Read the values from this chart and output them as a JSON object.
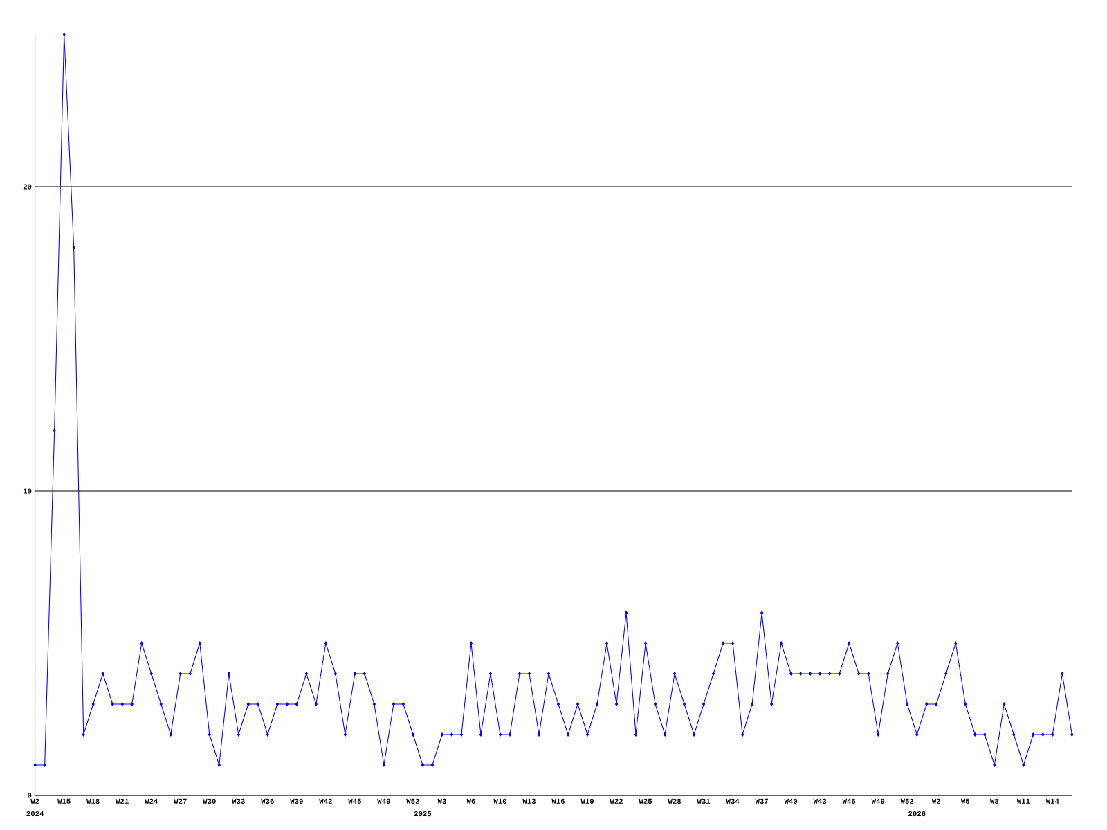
{
  "chart_data": {
    "type": "line",
    "categories": [
      "W2",
      null,
      null,
      "W15",
      null,
      null,
      "W18",
      null,
      null,
      "W21",
      null,
      null,
      "W24",
      null,
      null,
      "W27",
      null,
      null,
      "W30",
      null,
      null,
      "W33",
      null,
      null,
      "W36",
      null,
      null,
      "W39",
      null,
      null,
      "W42",
      null,
      null,
      "W45",
      null,
      null,
      "W49",
      null,
      null,
      "W52",
      null,
      null,
      "W3",
      null,
      null,
      "W6",
      null,
      null,
      "W10",
      null,
      null,
      "W13",
      null,
      null,
      "W16",
      null,
      null,
      "W19",
      null,
      null,
      "W22",
      null,
      null,
      "W25",
      null,
      null,
      "W28",
      null,
      null,
      "W31",
      null,
      null,
      "W34",
      null,
      null,
      "W37",
      null,
      null,
      "W40",
      null,
      null,
      "W43",
      null,
      null,
      "W46",
      null,
      null,
      "W49",
      null,
      null,
      "W52",
      null,
      null,
      "W2",
      null,
      null,
      "W5",
      null,
      null,
      "W8",
      null,
      null,
      "W11",
      null,
      null,
      "W14",
      null,
      null
    ],
    "series": [
      {
        "color": "#0000ff",
        "values": [
          1,
          1,
          12,
          25,
          18,
          2,
          3,
          4,
          3,
          3,
          3,
          5,
          4,
          3,
          2,
          4,
          4,
          5,
          2,
          1,
          4,
          2,
          3,
          3,
          2,
          3,
          3,
          3,
          4,
          3,
          5,
          4,
          2,
          4,
          4,
          3,
          1,
          3,
          3,
          2,
          1,
          1,
          2,
          2,
          2,
          5,
          2,
          4,
          2,
          2,
          4,
          4,
          2,
          4,
          3,
          2,
          3,
          2,
          3,
          5,
          3,
          6,
          2,
          5,
          3,
          2,
          4,
          3,
          2,
          3,
          4,
          5,
          5,
          2,
          3,
          6,
          3,
          5,
          4,
          4,
          4,
          4,
          4,
          4,
          5,
          4,
          4,
          2,
          4,
          5,
          3,
          2,
          3,
          3,
          4,
          5,
          3,
          2,
          2,
          1,
          3,
          2,
          1,
          2,
          2,
          2,
          4,
          2
        ]
      }
    ],
    "ylim": [
      0,
      25
    ],
    "yticks": [
      0,
      10,
      20
    ],
    "annotations": [
      "2024",
      "2025",
      "2026"
    ],
    "grid": "y",
    "marker": "diamond",
    "line_style": "solid"
  }
}
